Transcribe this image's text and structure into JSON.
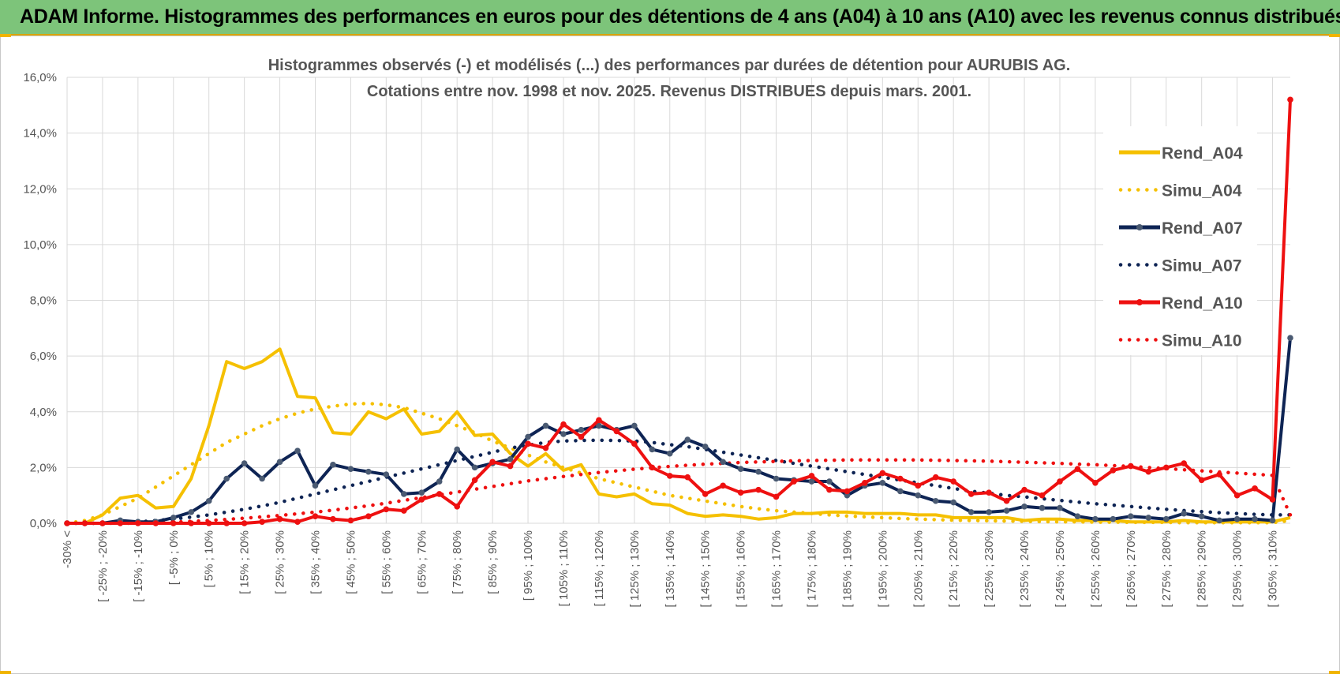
{
  "header": {
    "title": "ADAM Informe. Histogrammes des performances en euros pour des détentions de 4 ans (A04) à 10 ans (A10) avec les revenus connus distribués"
  },
  "colors": {
    "header_bg": "#7dc47a",
    "accent": "#f0b400",
    "A04": "#f5c000",
    "A07": "#0e2454",
    "A10": "#ee1010",
    "grid": "#d9d9d9"
  },
  "chart_data": {
    "type": "line",
    "title": "Histogrammes observés (-) et modélisés (...) des performances par durées de détention pour AURUBIS AG.",
    "subtitle": "Cotations entre nov. 1998 et nov. 2025. Revenus DISTRIBUES depuis mars. 2001.",
    "xlabel": "",
    "ylabel": "",
    "ylim": [
      0,
      16
    ],
    "yticks": [
      "0,0%",
      "2,0%",
      "4,0%",
      "6,0%",
      "8,0%",
      "10,0%",
      "12,0%",
      "14,0%",
      "16,0%"
    ],
    "grid": true,
    "legend_position": "right",
    "categories": [
      "-30% <",
      "[ -30% ; -25% [",
      "[ -25% ; -20% [",
      "[ -20% ; -15% [",
      "[ -15% ; -10% [",
      "[ -10% ; -5% [",
      "[ -5% ; 0% [",
      "[ 0% ; 5% [",
      "[ 5% ; 10% [",
      "[ 10% ; 15% [",
      "[ 15% ; 20% [",
      "[ 20% ; 25% [",
      "[ 25% ; 30% [",
      "[ 30% ; 35% [",
      "[ 35% ; 40% [",
      "[ 40% ; 45% [",
      "[ 45% ; 50% [",
      "[ 50% ; 55% [",
      "[ 55% ; 60% [",
      "[ 60% ; 65% [",
      "[ 65% ; 70% [",
      "[ 70% ; 75% [",
      "[ 75% ; 80% [",
      "[ 80% ; 85% [",
      "[ 85% ; 90% [",
      "[ 90% ; 95% [",
      "[ 95% ; 100% [",
      "[ 100% ; 105% [",
      "[ 105% ; 110% [",
      "[ 110% ; 115% [",
      "[ 115% ; 120% [",
      "[ 120% ; 125% [",
      "[ 125% ; 130% [",
      "[ 130% ; 135% [",
      "[ 135% ; 140% [",
      "[ 140% ; 145% [",
      "[ 145% ; 150% [",
      "[ 150% ; 155% [",
      "[ 155% ; 160% [",
      "[ 160% ; 165% [",
      "[ 165% ; 170% [",
      "[ 170% ; 175% [",
      "[ 175% ; 180% [",
      "[ 180% ; 185% [",
      "[ 185% ; 190% [",
      "[ 190% ; 195% [",
      "[ 195% ; 200% [",
      "[ 200% ; 205% [",
      "[ 205% ; 210% [",
      "[ 210% ; 215% [",
      "[ 215% ; 220% [",
      "[ 220% ; 225% [",
      "[ 225% ; 230% [",
      "[ 230% ; 235% [",
      "[ 235% ; 240% [",
      "[ 240% ; 245% [",
      "[ 245% ; 250% [",
      "[ 250% ; 255% [",
      "[ 255% ; 260% [",
      "[ 260% ; 265% [",
      "[ 265% ; 270% [",
      "[ 270% ; 275% [",
      "[ 275% ; 280% [",
      "[ 280% ; 285% [",
      "[ 285% ; 290% [",
      "[ 290% ; 295% [",
      "[ 295% ; 300% [",
      "[ 300% ; 305% [",
      "[ 305% ; 310% [",
      "310% <"
    ],
    "tick_labels": [
      "-30% <",
      "[ -25% ; -20%",
      "[ -15% ; -10%",
      "[ -5% ; 0%",
      "[ 5% ; 10%",
      "[ 15% ; 20%",
      "[ 25% ; 30%",
      "[ 35% ; 40%",
      "[ 45% ; 50%",
      "[ 55% ; 60%",
      "[ 65% ; 70%",
      "[ 75% ; 80%",
      "[ 85% ; 90%",
      "[ 95% ; 100%",
      "[ 105% ; 110%",
      "[ 115% ; 120%",
      "[ 125% ; 130%",
      "[ 135% ; 140%",
      "[ 145% ; 150%",
      "[ 155% ; 160%",
      "[ 165% ; 170%",
      "[ 175% ; 180%",
      "[ 185% ; 190%",
      "[ 195% ; 200%",
      "[ 205% ; 210%",
      "[ 215% ; 220%",
      "[ 225% ; 230%",
      "[ 235% ; 240%",
      "[ 245% ; 250%",
      "[ 255% ; 260%",
      "[ 265% ; 270%",
      "[ 275% ; 280%",
      "[ 285% ; 290%",
      "[ 295% ; 300%",
      "[ 305% ; 310%"
    ],
    "series": [
      {
        "name": "Rend_A04",
        "style": "solid",
        "color": "#f5c000",
        "values": [
          0.0,
          0.0,
          0.3,
          0.9,
          1.0,
          0.55,
          0.6,
          1.6,
          3.5,
          5.8,
          5.55,
          5.8,
          6.25,
          4.55,
          4.5,
          3.25,
          3.2,
          4.0,
          3.75,
          4.1,
          3.2,
          3.3,
          4.0,
          3.15,
          3.2,
          2.5,
          2.05,
          2.5,
          1.9,
          2.1,
          1.05,
          0.95,
          1.05,
          0.7,
          0.65,
          0.35,
          0.25,
          0.3,
          0.25,
          0.15,
          0.2,
          0.35,
          0.35,
          0.4,
          0.4,
          0.35,
          0.35,
          0.35,
          0.3,
          0.3,
          0.2,
          0.2,
          0.2,
          0.2,
          0.1,
          0.15,
          0.15,
          0.1,
          0.1,
          0.1,
          0.05,
          0.05,
          0.05,
          0.1,
          0.05,
          0.05,
          0.05,
          0.05,
          0.05,
          0.2
        ]
      },
      {
        "name": "Simu_A04",
        "style": "dotted",
        "color": "#f5c000",
        "values": [
          0.0,
          0.1,
          0.3,
          0.6,
          0.9,
          1.3,
          1.7,
          2.1,
          2.5,
          2.9,
          3.2,
          3.5,
          3.75,
          3.95,
          4.1,
          4.2,
          4.28,
          4.3,
          4.25,
          4.15,
          3.95,
          3.75,
          3.5,
          3.25,
          2.95,
          2.7,
          2.45,
          2.2,
          2.0,
          1.8,
          1.6,
          1.45,
          1.3,
          1.15,
          1.0,
          0.9,
          0.8,
          0.7,
          0.6,
          0.52,
          0.45,
          0.4,
          0.35,
          0.3,
          0.26,
          0.23,
          0.2,
          0.17,
          0.15,
          0.13,
          0.11,
          0.1,
          0.09,
          0.08,
          0.07,
          0.06,
          0.05,
          0.05,
          0.04,
          0.04,
          0.03,
          0.03,
          0.03,
          0.02,
          0.02,
          0.02,
          0.02,
          0.02,
          0.02,
          0.1
        ]
      },
      {
        "name": "Rend_A07",
        "style": "solid",
        "color": "#0e2454",
        "values": [
          0.0,
          0.0,
          0.0,
          0.1,
          0.05,
          0.05,
          0.2,
          0.4,
          0.8,
          1.6,
          2.15,
          1.6,
          2.2,
          2.6,
          1.35,
          2.1,
          1.95,
          1.85,
          1.75,
          1.05,
          1.1,
          1.5,
          2.65,
          2.0,
          2.15,
          2.3,
          3.1,
          3.5,
          3.2,
          3.35,
          3.5,
          3.35,
          3.5,
          2.65,
          2.5,
          3.0,
          2.75,
          2.2,
          1.95,
          1.85,
          1.6,
          1.55,
          1.5,
          1.5,
          1.0,
          1.35,
          1.45,
          1.15,
          1.0,
          0.8,
          0.75,
          0.4,
          0.4,
          0.45,
          0.6,
          0.55,
          0.55,
          0.25,
          0.15,
          0.15,
          0.25,
          0.2,
          0.15,
          0.35,
          0.25,
          0.1,
          0.15,
          0.15,
          0.1,
          6.65
        ]
      },
      {
        "name": "Simu_A07",
        "style": "dotted",
        "color": "#0e2454",
        "values": [
          0.0,
          0.0,
          0.0,
          0.02,
          0.05,
          0.1,
          0.15,
          0.22,
          0.3,
          0.4,
          0.5,
          0.62,
          0.75,
          0.9,
          1.05,
          1.2,
          1.35,
          1.5,
          1.65,
          1.8,
          1.95,
          2.1,
          2.25,
          2.4,
          2.55,
          2.7,
          2.8,
          2.9,
          2.95,
          2.97,
          2.98,
          2.97,
          2.95,
          2.9,
          2.82,
          2.75,
          2.65,
          2.55,
          2.45,
          2.35,
          2.25,
          2.15,
          2.05,
          1.95,
          1.85,
          1.75,
          1.65,
          1.55,
          1.45,
          1.35,
          1.25,
          1.15,
          1.08,
          1.0,
          0.95,
          0.88,
          0.82,
          0.76,
          0.7,
          0.65,
          0.6,
          0.55,
          0.5,
          0.46,
          0.42,
          0.38,
          0.35,
          0.32,
          0.3,
          0.3
        ]
      },
      {
        "name": "Rend_A10",
        "style": "solid",
        "color": "#ee1010",
        "values": [
          0.0,
          0.0,
          0.0,
          0.0,
          0.0,
          0.0,
          0.0,
          0.0,
          0.0,
          0.0,
          0.0,
          0.05,
          0.15,
          0.05,
          0.25,
          0.15,
          0.1,
          0.25,
          0.5,
          0.45,
          0.85,
          1.05,
          0.6,
          1.55,
          2.2,
          2.05,
          2.85,
          2.7,
          3.55,
          3.1,
          3.7,
          3.3,
          2.85,
          2.0,
          1.7,
          1.65,
          1.05,
          1.35,
          1.1,
          1.2,
          0.95,
          1.5,
          1.7,
          1.2,
          1.15,
          1.45,
          1.8,
          1.6,
          1.35,
          1.65,
          1.5,
          1.05,
          1.1,
          0.8,
          1.2,
          1.0,
          1.5,
          1.95,
          1.45,
          1.9,
          2.05,
          1.85,
          2.0,
          2.15,
          1.55,
          1.75,
          1.0,
          1.25,
          0.85,
          15.2
        ]
      },
      {
        "name": "Simu_A10",
        "style": "dotted",
        "color": "#ee1010",
        "values": [
          0.0,
          0.0,
          0.0,
          0.0,
          0.0,
          0.02,
          0.04,
          0.07,
          0.1,
          0.14,
          0.18,
          0.23,
          0.28,
          0.34,
          0.4,
          0.47,
          0.55,
          0.63,
          0.72,
          0.82,
          0.92,
          1.02,
          1.12,
          1.22,
          1.32,
          1.42,
          1.52,
          1.6,
          1.68,
          1.75,
          1.82,
          1.88,
          1.94,
          1.99,
          2.04,
          2.08,
          2.12,
          2.15,
          2.18,
          2.2,
          2.22,
          2.24,
          2.25,
          2.26,
          2.27,
          2.27,
          2.27,
          2.27,
          2.27,
          2.26,
          2.25,
          2.24,
          2.23,
          2.21,
          2.19,
          2.17,
          2.15,
          2.12,
          2.1,
          2.07,
          2.04,
          2.0,
          1.96,
          1.92,
          1.88,
          1.84,
          1.8,
          1.76,
          1.72,
          0.3
        ]
      }
    ]
  }
}
